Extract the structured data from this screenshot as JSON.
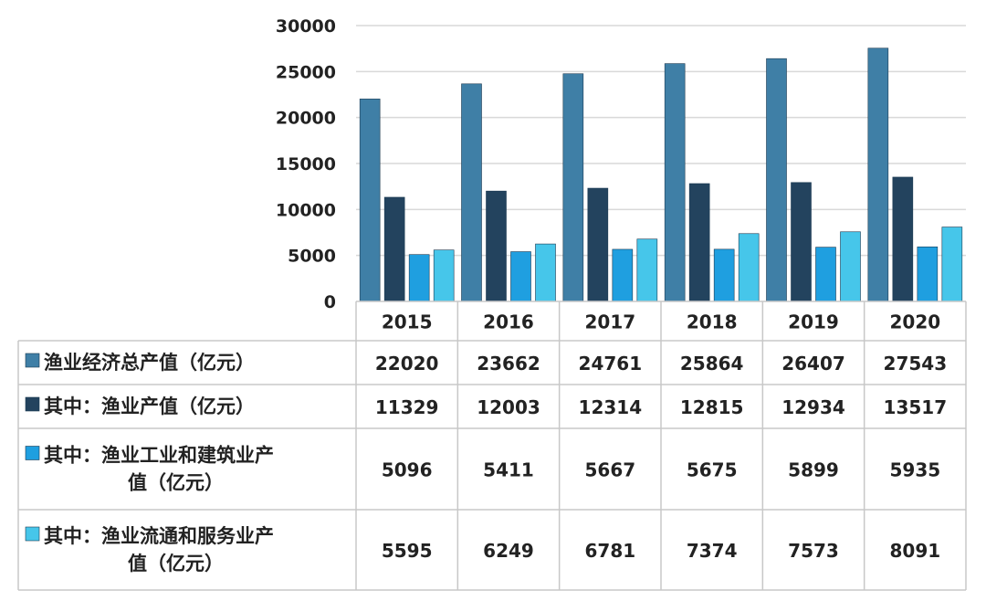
{
  "chart_data": {
    "type": "bar",
    "categories": [
      "2015",
      "2016",
      "2017",
      "2018",
      "2019",
      "2020"
    ],
    "series": [
      {
        "name": "渔业经济总产值（亿元）",
        "legend_lines": [
          "渔业经济总产值（亿元）"
        ],
        "color": "#3f7fa6",
        "values": [
          22020,
          23662,
          24761,
          25864,
          26407,
          27543
        ]
      },
      {
        "name": "其中：渔业产值（亿元）",
        "legend_lines": [
          "其中：渔业产值（亿元）"
        ],
        "color": "#23435e",
        "values": [
          11329,
          12003,
          12314,
          12815,
          12934,
          13517
        ]
      },
      {
        "name": "其中：渔业工业和建筑业产值（亿元）",
        "legend_lines": [
          "其中：渔业工业和建筑业产",
          "值（亿元）"
        ],
        "color": "#1f9fe0",
        "values": [
          5096,
          5411,
          5667,
          5675,
          5899,
          5935
        ]
      },
      {
        "name": "其中：渔业流通和服务业产值（亿元）",
        "legend_lines": [
          "其中：渔业流通和服务业产",
          "值（亿元）"
        ],
        "color": "#46c6ea",
        "values": [
          5595,
          6249,
          6781,
          7374,
          7573,
          8091
        ]
      }
    ],
    "y_ticks": [
      0,
      5000,
      10000,
      15000,
      20000,
      25000,
      30000
    ],
    "ylim": [
      0,
      30000
    ],
    "grid": true,
    "legend": "data-table-below"
  }
}
